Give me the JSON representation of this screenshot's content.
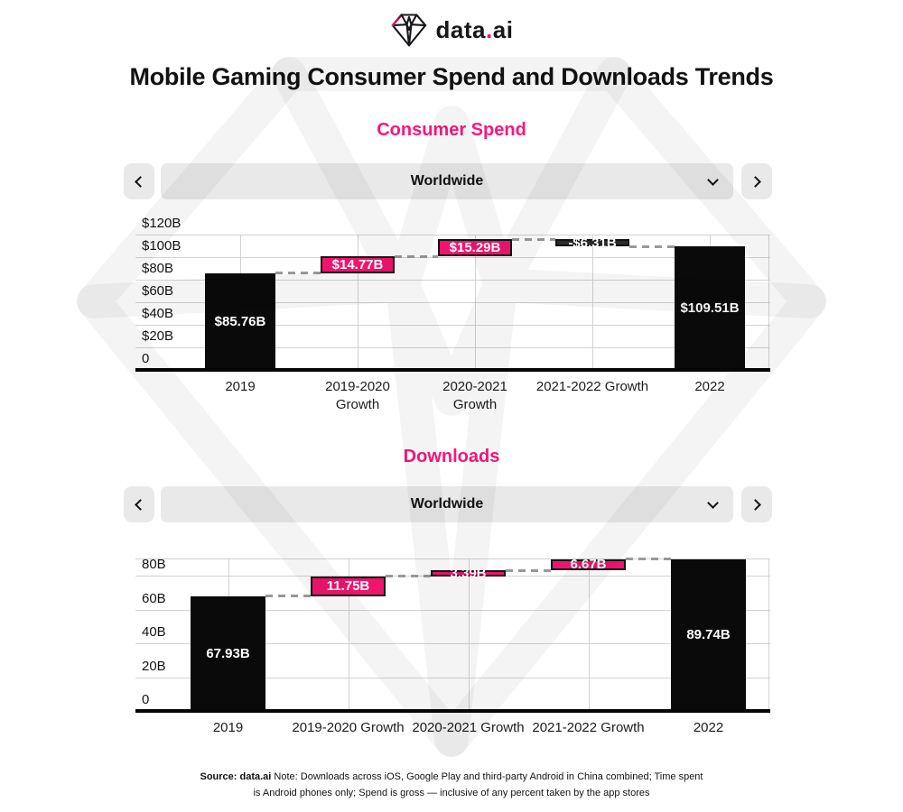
{
  "brand": {
    "name_prefix": "data",
    "name_dot": ".",
    "name_suffix": "ai"
  },
  "title": "Mobile Gaming Consumer Spend and Downloads Trends",
  "colors": {
    "accent_pink": "#FB167D",
    "bar_pink": "#F0146E",
    "bar_black": "#0A0A0A",
    "negative_bar": "#2B2B2B",
    "control_bg": "#E9E9E9",
    "gridline": "#D2D2D2",
    "connector": "#999999"
  },
  "sections": [
    {
      "heading": "Consumer Spend",
      "selector": {
        "value": "Worldwide",
        "prev_icon": "chevron-left",
        "next_icon": "chevron-right",
        "expand_icon": "chevron-down"
      }
    },
    {
      "heading": "Downloads",
      "selector": {
        "value": "Worldwide",
        "prev_icon": "chevron-left",
        "next_icon": "chevron-right",
        "expand_icon": "chevron-down"
      }
    }
  ],
  "chart_data": [
    {
      "type": "bar",
      "subtype": "waterfall",
      "title": "Consumer Spend",
      "region": "Worldwide",
      "categories": [
        "2019",
        "2019-2020\nGrowth",
        "2020-2021\nGrowth",
        "2021-2022 Growth",
        "2022"
      ],
      "values": [
        85.76,
        14.77,
        15.29,
        -6.31,
        109.51
      ],
      "labels": [
        "$85.76B",
        "$14.77B",
        "$15.29B",
        "-$6.31B",
        "$109.51B"
      ],
      "bar_kinds": [
        "total",
        "delta",
        "delta",
        "delta",
        "total"
      ],
      "yticks": [
        0,
        20,
        40,
        60,
        80,
        100,
        120
      ],
      "ytick_labels": [
        "0",
        "$20B",
        "$40B",
        "$60B",
        "$80B",
        "$100B",
        "$120B"
      ],
      "ymax": 120,
      "unit": "$B",
      "grid": true,
      "legend": false
    },
    {
      "type": "bar",
      "subtype": "waterfall",
      "title": "Downloads",
      "region": "Worldwide",
      "categories": [
        "2019",
        "2019-2020 Growth",
        "2020-2021 Growth",
        "2021-2022 Growth",
        "2022"
      ],
      "values": [
        67.93,
        11.75,
        3.39,
        6.67,
        89.74
      ],
      "labels": [
        "67.93B",
        "11.75B",
        "3.39B",
        "6.67B",
        "89.74B"
      ],
      "bar_kinds": [
        "total",
        "delta",
        "delta",
        "delta",
        "total"
      ],
      "yticks": [
        0,
        20,
        40,
        60,
        80
      ],
      "ytick_labels": [
        "0",
        "20B",
        "40B",
        "60B",
        "80B"
      ],
      "ymax": 90,
      "unit": "B",
      "grid": true,
      "legend": false
    }
  ],
  "footer": {
    "source_label": "Source: data.ai",
    "note_text": "Note: Downloads across iOS, Google Play and third-party Android in China combined; Time spent is Android phones only; Spend is gross — inclusive of any percent taken by the app stores"
  }
}
